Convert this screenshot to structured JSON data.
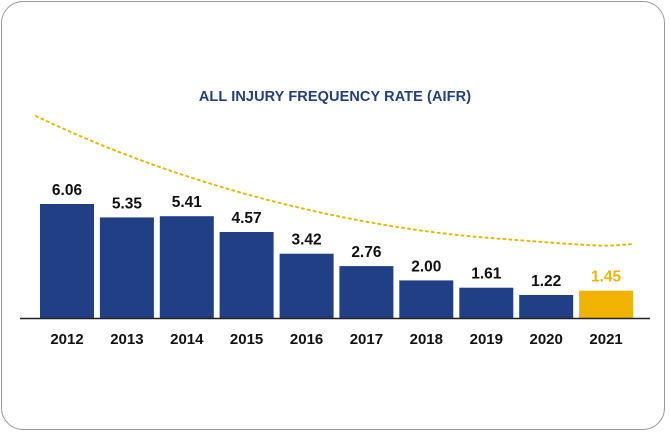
{
  "chart_data": {
    "type": "bar",
    "title": "ALL INJURY FREQUENCY RATE (AIFR)",
    "xlabel": "",
    "ylabel": "",
    "categories": [
      "2012",
      "2013",
      "2014",
      "2015",
      "2016",
      "2017",
      "2018",
      "2019",
      "2020",
      "2021"
    ],
    "values": [
      6.06,
      5.35,
      5.41,
      4.57,
      3.42,
      2.76,
      2.0,
      1.61,
      1.22,
      1.45
    ],
    "value_labels": [
      "6.06",
      "5.35",
      "5.41",
      "4.57",
      "3.42",
      "2.76",
      "2.00",
      "1.61",
      "1.22",
      "1.45"
    ],
    "highlight_index": 9,
    "ylim": [
      0,
      6.06
    ],
    "grid": false,
    "legend": "none",
    "trendline": {
      "style": "dotted",
      "shape": "decreasing curve"
    }
  },
  "colors": {
    "bar": "#213f84",
    "highlight": "#f2b300",
    "title": "#213f84",
    "trendline": "#e9b700",
    "border": "#9a9a9a"
  }
}
